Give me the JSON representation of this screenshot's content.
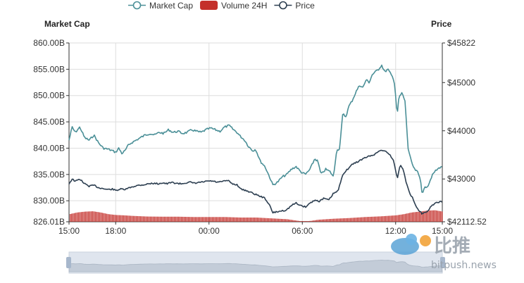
{
  "chart_data": {
    "type": "line",
    "legend": {
      "position": "top-center",
      "items": [
        {
          "label": "Market Cap",
          "color": "#4a8f97",
          "marker": "hollow-circle"
        },
        {
          "label": "Volume 24H",
          "color": "#c4302b",
          "marker": "rect"
        },
        {
          "label": "Price",
          "color": "#2c3e50",
          "marker": "hollow-circle"
        }
      ]
    },
    "left_axis": {
      "title": "Market Cap",
      "ticks": [
        "860.00B",
        "855.00B",
        "850.00B",
        "845.00B",
        "840.00B",
        "835.00B",
        "830.00B",
        "826.01B"
      ],
      "tick_values": [
        860.0,
        855.0,
        850.0,
        845.0,
        840.0,
        835.0,
        830.0,
        826.01
      ],
      "range": [
        826.01,
        860.0
      ],
      "unit": "B"
    },
    "right_axis": {
      "title": "Price",
      "ticks": [
        "$45822",
        "$45000",
        "$44000",
        "$43000",
        "$42112.52"
      ],
      "tick_values": [
        45822,
        45000,
        44000,
        43000,
        42112.52
      ],
      "range": [
        42112.52,
        45822
      ]
    },
    "x_axis": {
      "ticks": [
        "15:00",
        "18:00",
        "00:00",
        "06:00",
        "12:00",
        "15:00"
      ],
      "tick_hours": [
        0,
        3,
        9,
        15,
        21,
        24
      ],
      "range_hours": [
        0,
        24
      ]
    },
    "grid": true,
    "series": [
      {
        "name": "Market Cap",
        "axis": "left",
        "color": "#4a8f97",
        "points": [
          [
            0,
            841.5
          ],
          [
            0.2,
            844
          ],
          [
            0.4,
            843
          ],
          [
            0.7,
            844
          ],
          [
            1.0,
            842
          ],
          [
            1.3,
            841.5
          ],
          [
            1.6,
            842.5
          ],
          [
            1.9,
            841
          ],
          [
            2.2,
            840
          ],
          [
            2.5,
            839.8
          ],
          [
            2.8,
            839.5
          ],
          [
            3.0,
            839.2
          ],
          [
            3.2,
            840
          ],
          [
            3.4,
            839
          ],
          [
            3.6,
            839.5
          ],
          [
            3.8,
            840.5
          ],
          [
            4.0,
            841
          ],
          [
            4.3,
            841.5
          ],
          [
            4.6,
            842
          ],
          [
            4.9,
            842.5
          ],
          [
            5.2,
            842.8
          ],
          [
            5.5,
            842.5
          ],
          [
            5.8,
            843
          ],
          [
            6.1,
            842.8
          ],
          [
            6.4,
            843.5
          ],
          [
            6.7,
            843
          ],
          [
            7.0,
            843.2
          ],
          [
            7.3,
            842.8
          ],
          [
            7.6,
            843
          ],
          [
            7.9,
            843.5
          ],
          [
            8.2,
            843.2
          ],
          [
            8.5,
            843
          ],
          [
            8.8,
            843.5
          ],
          [
            9.1,
            843.8
          ],
          [
            9.4,
            843.5
          ],
          [
            9.7,
            843.2
          ],
          [
            10.0,
            844
          ],
          [
            10.3,
            844.3
          ],
          [
            10.5,
            843.7
          ],
          [
            10.8,
            843
          ],
          [
            11.0,
            842.3
          ],
          [
            11.3,
            841.5
          ],
          [
            11.5,
            840.5
          ],
          [
            11.8,
            839.5
          ],
          [
            12.0,
            839.8
          ],
          [
            12.3,
            837.5
          ],
          [
            12.6,
            836.5
          ],
          [
            12.9,
            834.5
          ],
          [
            13.1,
            833
          ],
          [
            13.4,
            833.5
          ],
          [
            13.7,
            834.5
          ],
          [
            14.0,
            835
          ],
          [
            14.3,
            836
          ],
          [
            14.6,
            836.5
          ],
          [
            14.9,
            835.5
          ],
          [
            15.2,
            835
          ],
          [
            15.5,
            836
          ],
          [
            15.8,
            838
          ],
          [
            16.0,
            837.5
          ],
          [
            16.2,
            835
          ],
          [
            16.5,
            836
          ],
          [
            16.8,
            835.5
          ],
          [
            17.0,
            834.5
          ],
          [
            17.2,
            839.5
          ],
          [
            17.4,
            840
          ],
          [
            17.6,
            846.5
          ],
          [
            17.8,
            846
          ],
          [
            18.0,
            848
          ],
          [
            18.2,
            849
          ],
          [
            18.5,
            851
          ],
          [
            18.7,
            852
          ],
          [
            18.9,
            851.5
          ],
          [
            19.1,
            853
          ],
          [
            19.3,
            852.5
          ],
          [
            19.5,
            854
          ],
          [
            19.7,
            854.5
          ],
          [
            19.9,
            855
          ],
          [
            20.1,
            855.8
          ],
          [
            20.3,
            854.5
          ],
          [
            20.5,
            855
          ],
          [
            20.7,
            854
          ],
          [
            20.9,
            853
          ],
          [
            21.0,
            850
          ],
          [
            21.1,
            846
          ],
          [
            21.2,
            849.5
          ],
          [
            21.4,
            850.5
          ],
          [
            21.6,
            849
          ],
          [
            21.8,
            840
          ],
          [
            22.0,
            837.5
          ],
          [
            22.2,
            836
          ],
          [
            22.4,
            835.5
          ],
          [
            22.6,
            834
          ],
          [
            22.7,
            831.5
          ],
          [
            22.9,
            832.5
          ],
          [
            23.1,
            833
          ],
          [
            23.3,
            834.5
          ],
          [
            23.5,
            835.5
          ],
          [
            23.7,
            836
          ],
          [
            23.9,
            836.5
          ],
          [
            24.0,
            836.3
          ]
        ]
      },
      {
        "name": "Price",
        "axis": "right",
        "color": "#2c3e50",
        "points": [
          [
            0,
            42900
          ],
          [
            0.2,
            43000
          ],
          [
            0.4,
            42950
          ],
          [
            0.7,
            43000
          ],
          [
            1.0,
            42900
          ],
          [
            1.3,
            42850
          ],
          [
            1.6,
            42870
          ],
          [
            1.9,
            42820
          ],
          [
            2.2,
            42800
          ],
          [
            2.5,
            42780
          ],
          [
            2.8,
            42790
          ],
          [
            3.0,
            42760
          ],
          [
            3.3,
            42790
          ],
          [
            3.6,
            42780
          ],
          [
            3.9,
            42820
          ],
          [
            4.2,
            42850
          ],
          [
            4.5,
            42870
          ],
          [
            4.8,
            42880
          ],
          [
            5.1,
            42900
          ],
          [
            5.4,
            42910
          ],
          [
            5.7,
            42900
          ],
          [
            6.0,
            42920
          ],
          [
            6.3,
            42900
          ],
          [
            6.6,
            42930
          ],
          [
            6.9,
            42910
          ],
          [
            7.2,
            42900
          ],
          [
            7.5,
            42920
          ],
          [
            7.8,
            42930
          ],
          [
            8.1,
            42910
          ],
          [
            8.4,
            42930
          ],
          [
            8.7,
            42940
          ],
          [
            9.0,
            42960
          ],
          [
            9.3,
            42950
          ],
          [
            9.6,
            42930
          ],
          [
            9.9,
            42950
          ],
          [
            10.2,
            42970
          ],
          [
            10.5,
            42900
          ],
          [
            10.8,
            42880
          ],
          [
            11.1,
            42780
          ],
          [
            11.4,
            42760
          ],
          [
            11.7,
            42720
          ],
          [
            12.0,
            42680
          ],
          [
            12.3,
            42640
          ],
          [
            12.6,
            42600
          ],
          [
            12.9,
            42450
          ],
          [
            13.1,
            42300
          ],
          [
            13.4,
            42320
          ],
          [
            13.7,
            42340
          ],
          [
            14.0,
            42360
          ],
          [
            14.3,
            42450
          ],
          [
            14.6,
            42500
          ],
          [
            14.9,
            42450
          ],
          [
            15.2,
            42420
          ],
          [
            15.5,
            42500
          ],
          [
            15.8,
            42560
          ],
          [
            16.1,
            42540
          ],
          [
            16.4,
            42600
          ],
          [
            16.7,
            42560
          ],
          [
            17.0,
            42700
          ],
          [
            17.3,
            42750
          ],
          [
            17.6,
            43100
          ],
          [
            17.9,
            43200
          ],
          [
            18.2,
            43300
          ],
          [
            18.5,
            43350
          ],
          [
            18.8,
            43400
          ],
          [
            19.1,
            43450
          ],
          [
            19.4,
            43480
          ],
          [
            19.7,
            43520
          ],
          [
            20.0,
            43600
          ],
          [
            20.3,
            43580
          ],
          [
            20.6,
            43520
          ],
          [
            20.9,
            43350
          ],
          [
            21.1,
            43000
          ],
          [
            21.3,
            43300
          ],
          [
            21.5,
            43200
          ],
          [
            21.7,
            42900
          ],
          [
            21.9,
            42700
          ],
          [
            22.1,
            42600
          ],
          [
            22.3,
            42450
          ],
          [
            22.5,
            42350
          ],
          [
            22.7,
            42280
          ],
          [
            22.9,
            42300
          ],
          [
            23.1,
            42330
          ],
          [
            23.3,
            42450
          ],
          [
            23.6,
            42500
          ],
          [
            23.8,
            42520
          ],
          [
            24.0,
            42530
          ]
        ]
      },
      {
        "name": "Volume 24H",
        "axis": "hidden",
        "type": "bar",
        "color": "#c4302b",
        "points": [
          [
            0,
            0.45
          ],
          [
            0.5,
            0.55
          ],
          [
            1.0,
            0.6
          ],
          [
            1.5,
            0.62
          ],
          [
            2.0,
            0.55
          ],
          [
            2.5,
            0.45
          ],
          [
            3.0,
            0.4
          ],
          [
            3.5,
            0.38
          ],
          [
            4.0,
            0.35
          ],
          [
            4.5,
            0.33
          ],
          [
            5.0,
            0.31
          ],
          [
            6.0,
            0.3
          ],
          [
            7.0,
            0.3
          ],
          [
            8.0,
            0.28
          ],
          [
            9.0,
            0.28
          ],
          [
            10.0,
            0.28
          ],
          [
            11.0,
            0.25
          ],
          [
            12.0,
            0.25
          ],
          [
            13.0,
            0.2
          ],
          [
            14.0,
            0.15
          ],
          [
            14.5,
            0.08
          ],
          [
            15.0,
            0.02
          ],
          [
            15.5,
            0.05
          ],
          [
            16.0,
            0.12
          ],
          [
            16.5,
            0.15
          ],
          [
            17.0,
            0.18
          ],
          [
            18.0,
            0.22
          ],
          [
            19.0,
            0.28
          ],
          [
            20.0,
            0.32
          ],
          [
            21.0,
            0.38
          ],
          [
            21.5,
            0.45
          ],
          [
            22.0,
            0.55
          ],
          [
            22.5,
            0.6
          ],
          [
            23.0,
            0.66
          ],
          [
            23.5,
            0.68
          ],
          [
            24.0,
            0.6
          ]
        ]
      }
    ],
    "data_zoom": {
      "start_percent": 0,
      "end_percent": 100
    }
  },
  "watermark": {
    "text_cn": "比推",
    "text_url": "bitpush.news"
  }
}
